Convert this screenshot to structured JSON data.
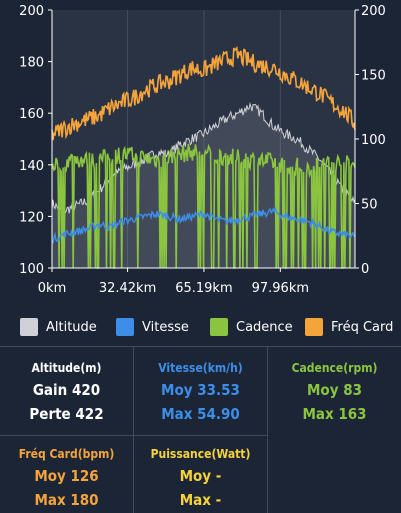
{
  "chart_data": {
    "type": "line",
    "x_tick_labels": [
      "0km",
      "32.42km",
      "65.19km",
      "97.96km"
    ],
    "x_ticks_km": [
      0,
      32.42,
      65.19,
      97.96
    ],
    "xlim": [
      0,
      130
    ],
    "left_axis": {
      "ylim": [
        100,
        200
      ],
      "ticks": [
        100,
        120,
        140,
        160,
        180,
        200
      ]
    },
    "right_axis": {
      "ylim": [
        0,
        200
      ],
      "ticks": [
        0,
        50,
        100,
        150,
        200
      ]
    },
    "series": [
      {
        "name": "Altitude",
        "axis": "left",
        "color": "#cfd1d6",
        "x": [
          0,
          5,
          10,
          15,
          20,
          25,
          30,
          35,
          40,
          45,
          50,
          55,
          60,
          65,
          70,
          75,
          80,
          85,
          90,
          95,
          100,
          105,
          110,
          115,
          120,
          125,
          130
        ],
        "values": [
          125,
          122,
          124,
          126,
          130,
          135,
          138,
          140,
          142,
          145,
          144,
          148,
          150,
          152,
          155,
          158,
          160,
          163,
          160,
          155,
          152,
          150,
          146,
          142,
          136,
          130,
          125
        ]
      },
      {
        "name": "Vitesse",
        "axis": "left",
        "color": "#3d8ee8",
        "x": [
          0,
          5,
          10,
          15,
          20,
          25,
          30,
          35,
          40,
          45,
          50,
          55,
          60,
          65,
          70,
          75,
          80,
          85,
          90,
          95,
          100,
          105,
          110,
          115,
          120,
          125,
          130
        ],
        "values": [
          111,
          113,
          114,
          115,
          117,
          116,
          118,
          119,
          120,
          121,
          120,
          119,
          120,
          121,
          119,
          118,
          119,
          120,
          121,
          122,
          120,
          119,
          118,
          116,
          114,
          113,
          112
        ]
      },
      {
        "name": "Cadence",
        "axis": "right",
        "color": "#8bc53f",
        "x": [
          0,
          5,
          10,
          15,
          20,
          25,
          30,
          35,
          40,
          45,
          50,
          55,
          60,
          65,
          70,
          75,
          80,
          85,
          90,
          95,
          100,
          105,
          110,
          115,
          120,
          125,
          130
        ],
        "values": [
          80,
          82,
          85,
          83,
          84,
          86,
          88,
          87,
          85,
          84,
          86,
          88,
          90,
          89,
          87,
          86,
          85,
          84,
          83,
          82,
          80,
          79,
          78,
          80,
          82,
          81,
          80
        ]
      },
      {
        "name": "Fréq Card",
        "axis": "right",
        "color": "#f5a43c",
        "x": [
          0,
          5,
          10,
          15,
          20,
          25,
          30,
          35,
          40,
          45,
          50,
          55,
          60,
          65,
          70,
          75,
          80,
          85,
          90,
          95,
          100,
          105,
          110,
          115,
          120,
          125,
          130
        ],
        "values": [
          103,
          108,
          112,
          115,
          118,
          124,
          128,
          132,
          138,
          142,
          145,
          150,
          155,
          153,
          158,
          162,
          165,
          160,
          157,
          155,
          150,
          145,
          140,
          135,
          128,
          122,
          112
        ]
      }
    ]
  },
  "stats": {
    "altitude": {
      "header": "Altitude(m)",
      "line1": "Gain 420",
      "line2": "Perte 422",
      "color": "#ffffff"
    },
    "vitesse": {
      "header": "Vitesse(km/h)",
      "line1": "Moy 33.53",
      "line2": "Max 54.90",
      "color": "#3d8ee8"
    },
    "cadence": {
      "header": "Cadence(rpm)",
      "line1": "Moy 83",
      "line2": "Max 163",
      "color": "#8bc53f"
    },
    "freq_card": {
      "header": "Fréq Card(bpm)",
      "line1": "Moy 126",
      "line2": "Max 180",
      "color": "#f5a43c"
    },
    "puissance": {
      "header": "Puissance(Watt)",
      "line1": "Moy -",
      "line2": "Max -",
      "color": "#f5d33c"
    }
  }
}
